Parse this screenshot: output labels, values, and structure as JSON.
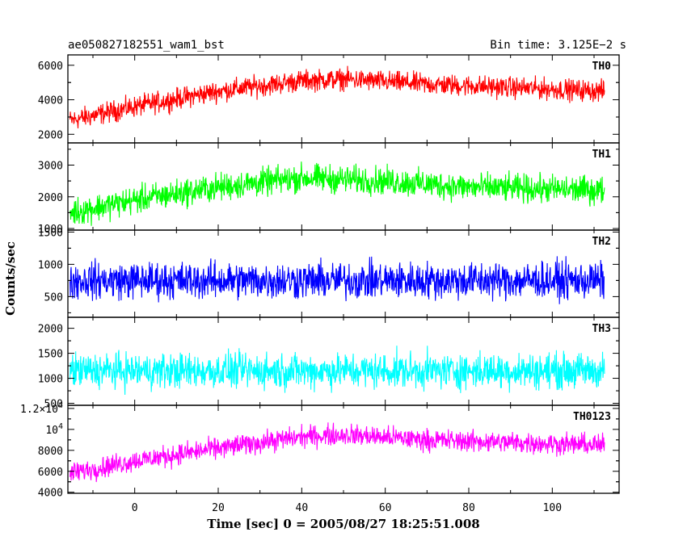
{
  "header": {
    "title": "ae050827182551_wam1_bst",
    "bin_time": "Bin time: 3.125E−2 s"
  },
  "chart_data": {
    "type": "line",
    "xlabel": "Time [sec] 0 = 2005/08/27 18:25:51.008",
    "ylabel": "Counts/sec",
    "xlim": [
      -16,
      116
    ],
    "x_ticks": [
      0,
      20,
      40,
      60,
      80,
      100
    ],
    "x_tick_labels": [
      "0",
      "20",
      "40",
      "60",
      "80",
      "100"
    ],
    "x_range_data": [
      -15.5,
      112.5
    ],
    "panels": [
      {
        "name": "TH0",
        "color": "#ff0000",
        "ylim": [
          1500,
          6600
        ],
        "y_ticks": [
          2000,
          4000,
          6000
        ],
        "y_tick_labels": [
          "2000",
          "4000",
          "6000"
        ],
        "trend": [
          [
            -15.5,
            2800
          ],
          [
            0,
            3600
          ],
          [
            20,
            4500
          ],
          [
            40,
            5100
          ],
          [
            50,
            5200
          ],
          [
            70,
            4900
          ],
          [
            112,
            4500
          ]
        ],
        "noise_amp": 900
      },
      {
        "name": "TH1",
        "color": "#00ff00",
        "ylim": [
          950,
          3700
        ],
        "y_ticks": [
          1000,
          2000,
          3000
        ],
        "y_tick_labels": [
          "1000",
          "2000",
          "3000"
        ],
        "trend": [
          [
            -15.5,
            1500
          ],
          [
            0,
            1900
          ],
          [
            20,
            2300
          ],
          [
            40,
            2600
          ],
          [
            60,
            2500
          ],
          [
            80,
            2300
          ],
          [
            112,
            2200
          ]
        ],
        "noise_amp": 650
      },
      {
        "name": "TH2",
        "color": "#0000ff",
        "ylim": [
          180,
          1530
        ],
        "y_ticks": [
          500,
          1000,
          1500
        ],
        "y_tick_labels": [
          "500",
          "1000",
          "1500"
        ],
        "trend": [
          [
            -15.5,
            750
          ],
          [
            112,
            750
          ]
        ],
        "noise_amp": 420
      },
      {
        "name": "TH3",
        "color": "#00ffff",
        "ylim": [
          460,
          2220
        ],
        "y_ticks": [
          500,
          1000,
          1500,
          2000
        ],
        "y_tick_labels": [
          "500",
          "1000",
          "1500",
          "2000"
        ],
        "trend": [
          [
            -15.5,
            1150
          ],
          [
            112,
            1150
          ]
        ],
        "noise_amp": 520
      },
      {
        "name": "TH0123",
        "color": "#ff00ff",
        "ylim": [
          3900,
          12300
        ],
        "y_ticks": [
          4000,
          6000,
          8000,
          10000,
          12000
        ],
        "y_tick_labels": [
          "4000",
          "6000",
          "8000",
          "10^4",
          "1.2×10^4"
        ],
        "trend": [
          [
            -15.5,
            5800
          ],
          [
            0,
            7000
          ],
          [
            20,
            8200
          ],
          [
            40,
            9300
          ],
          [
            50,
            9500
          ],
          [
            70,
            9000
          ],
          [
            112,
            8500
          ]
        ],
        "noise_amp": 1500
      }
    ]
  }
}
